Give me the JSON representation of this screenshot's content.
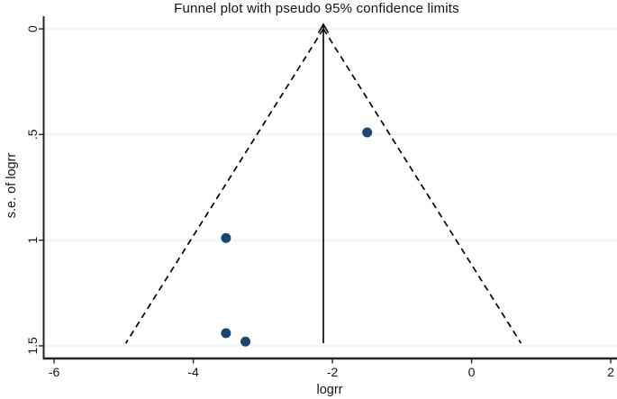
{
  "chart_data": {
    "type": "scatter",
    "subtype": "funnel-plot",
    "title": "Funnel plot with pseudo 95% confidence limits",
    "xlabel": "logrr",
    "ylabel": "s.e. of logrr",
    "xlim": [
      -6.15,
      2.09
    ],
    "ylim": [
      -0.06,
      1.56
    ],
    "y_axis_inverted": true,
    "grid": "horizontal-only",
    "legend": "none",
    "x_ticks": [
      -6,
      -4,
      -2,
      0,
      2
    ],
    "x_tick_labels": [
      "-6",
      "-4",
      "-2",
      "0",
      "2"
    ],
    "y_ticks": [
      0,
      0.5,
      1,
      1.5
    ],
    "y_tick_labels": [
      "0",
      ".5",
      "1",
      "1.5"
    ],
    "points": [
      {
        "x": -1.5,
        "se": 0.49
      },
      {
        "x": -3.53,
        "se": 0.99
      },
      {
        "x": -3.53,
        "se": 1.44
      },
      {
        "x": -3.25,
        "se": 1.48
      }
    ],
    "pooled_estimate": {
      "x": -2.13,
      "line_style": "solid",
      "arrow_at_top": true,
      "se_extent": 1.488
    },
    "confidence_limits": {
      "level": "95%",
      "apex_x": -2.13,
      "apex_se": 0,
      "max_se": 1.488,
      "left_x_at_max_se": -4.97,
      "right_x_at_max_se": 0.71,
      "line_style": "dashed"
    },
    "colors": {
      "point_fill": "#1a476f",
      "gridline": "#e7f0f4",
      "axis_line": "#242424",
      "plot_line": "#000000",
      "text": "#141414",
      "background": "#ffffff"
    }
  }
}
